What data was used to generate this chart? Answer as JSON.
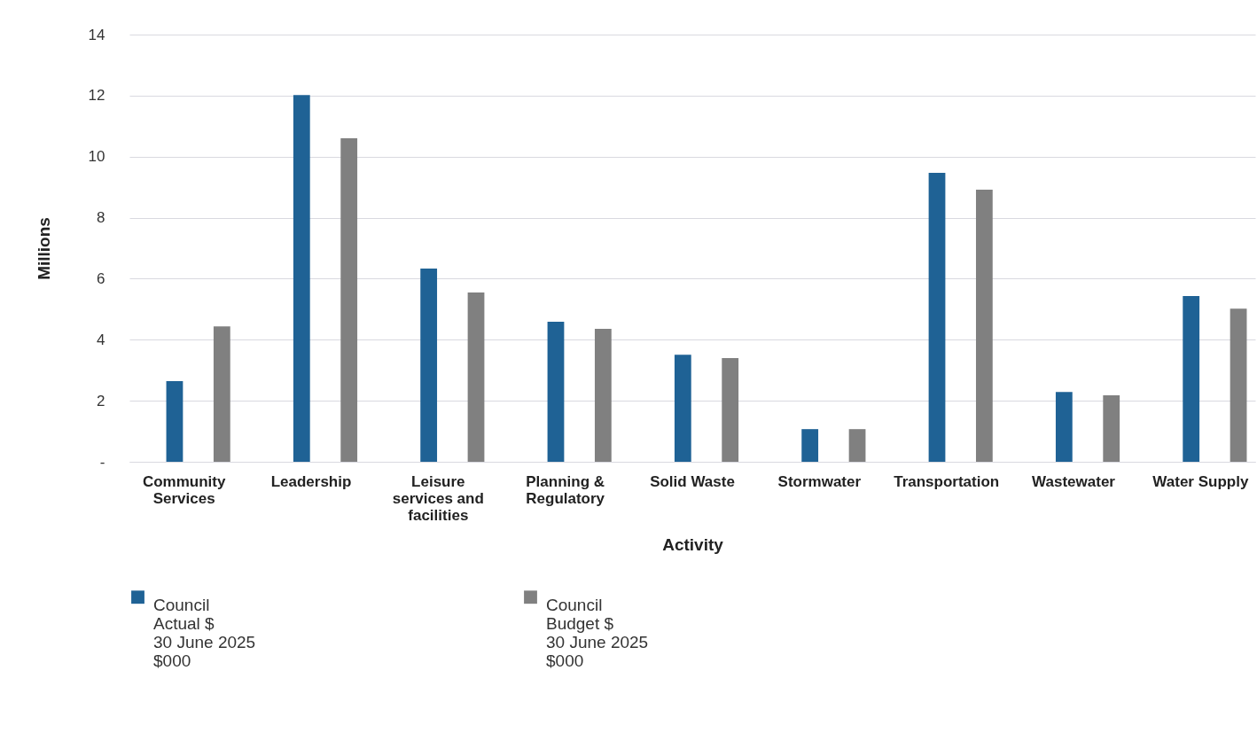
{
  "chart_data": {
    "type": "bar",
    "xlabel": "Activity",
    "ylabel": "Millions",
    "categories": [
      "Community Services",
      "Leadership",
      "Leisure services and facilities",
      "Planning & Regulatory",
      "Solid Waste",
      "Stormwater",
      "Transportation",
      "Wastewater",
      "Water Supply"
    ],
    "series": [
      {
        "name": "Council\nActual $\n30 June 2025\n$000",
        "color": "#1f6295",
        "values": [
          2.64,
          12.02,
          6.33,
          4.59,
          3.51,
          1.07,
          9.47,
          2.29,
          5.43
        ]
      },
      {
        "name": "Council\nBudget $\n30 June 2025\n$000",
        "color": "#808080",
        "values": [
          4.44,
          10.6,
          5.55,
          4.36,
          3.4,
          1.07,
          8.92,
          2.18,
          5.02
        ]
      }
    ],
    "ylim": [
      0,
      14
    ],
    "yticks": [
      {
        "value": 0,
        "label": "-"
      },
      2,
      4,
      6,
      8,
      10,
      12,
      14
    ],
    "grid": "y",
    "legend": "bottom"
  }
}
